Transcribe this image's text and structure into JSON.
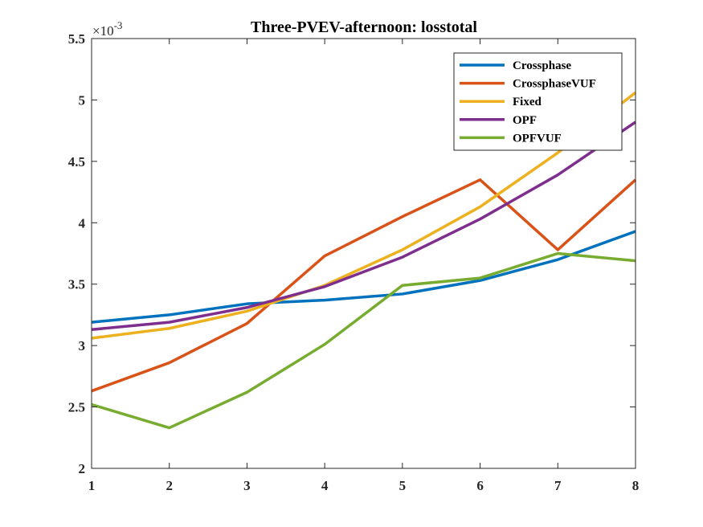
{
  "chart_data": {
    "type": "line",
    "title": "Three-PVEV-afternoon: losstotal",
    "xlabel": "",
    "ylabel": "",
    "y_exponent_prefix": "×10",
    "y_exponent": "-3",
    "x": [
      1,
      2,
      3,
      4,
      5,
      6,
      7,
      8
    ],
    "xlim": [
      1,
      8
    ],
    "ylim": [
      2,
      5.5
    ],
    "xticks": [
      "1",
      "2",
      "3",
      "4",
      "5",
      "6",
      "7",
      "8"
    ],
    "yticks": [
      "2",
      "2.5",
      "3",
      "3.5",
      "4",
      "4.5",
      "5",
      "5.5"
    ],
    "grid": false,
    "legend_position": "top-right",
    "series": [
      {
        "name": "Crossphase",
        "color": "#0072BD",
        "values": [
          3.19,
          3.25,
          3.34,
          3.37,
          3.42,
          3.53,
          3.7,
          3.93
        ]
      },
      {
        "name": "CrossphaseVUF",
        "color": "#D95319",
        "values": [
          2.63,
          2.86,
          3.18,
          3.73,
          4.05,
          4.35,
          3.78,
          4.35
        ]
      },
      {
        "name": "Fixed",
        "color": "#EDB120",
        "values": [
          3.06,
          3.14,
          3.28,
          3.49,
          3.78,
          4.13,
          4.57,
          5.06
        ]
      },
      {
        "name": "OPF",
        "color": "#7E2F8E",
        "values": [
          3.13,
          3.19,
          3.31,
          3.48,
          3.72,
          4.03,
          4.39,
          4.82
        ]
      },
      {
        "name": "OPFVUF",
        "color": "#77AC30",
        "values": [
          2.52,
          2.33,
          2.62,
          3.01,
          3.49,
          3.55,
          3.75,
          3.69
        ]
      }
    ]
  }
}
